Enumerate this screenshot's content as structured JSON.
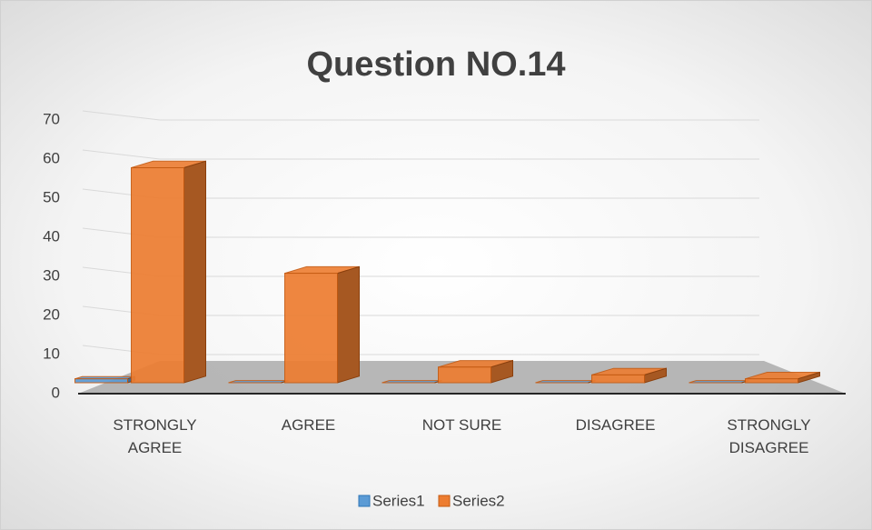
{
  "chart_data": {
    "type": "bar",
    "title": "Question NO.14",
    "categories": [
      "STRONGLY AGREE",
      "AGREE",
      "NOT SURE",
      "DISAGREE",
      "STRONGLY DISAGREE"
    ],
    "series": [
      {
        "name": "Series1",
        "color": "#5b9bd5",
        "values": [
          1,
          0,
          0,
          0,
          0
        ]
      },
      {
        "name": "Series2",
        "color": "#ed7d31",
        "values": [
          55,
          28,
          4,
          2,
          1
        ]
      }
    ],
    "ylim": [
      0,
      70
    ],
    "yticks": [
      0,
      10,
      20,
      30,
      40,
      50,
      60,
      70
    ],
    "grid": true,
    "legend": "bottom"
  }
}
